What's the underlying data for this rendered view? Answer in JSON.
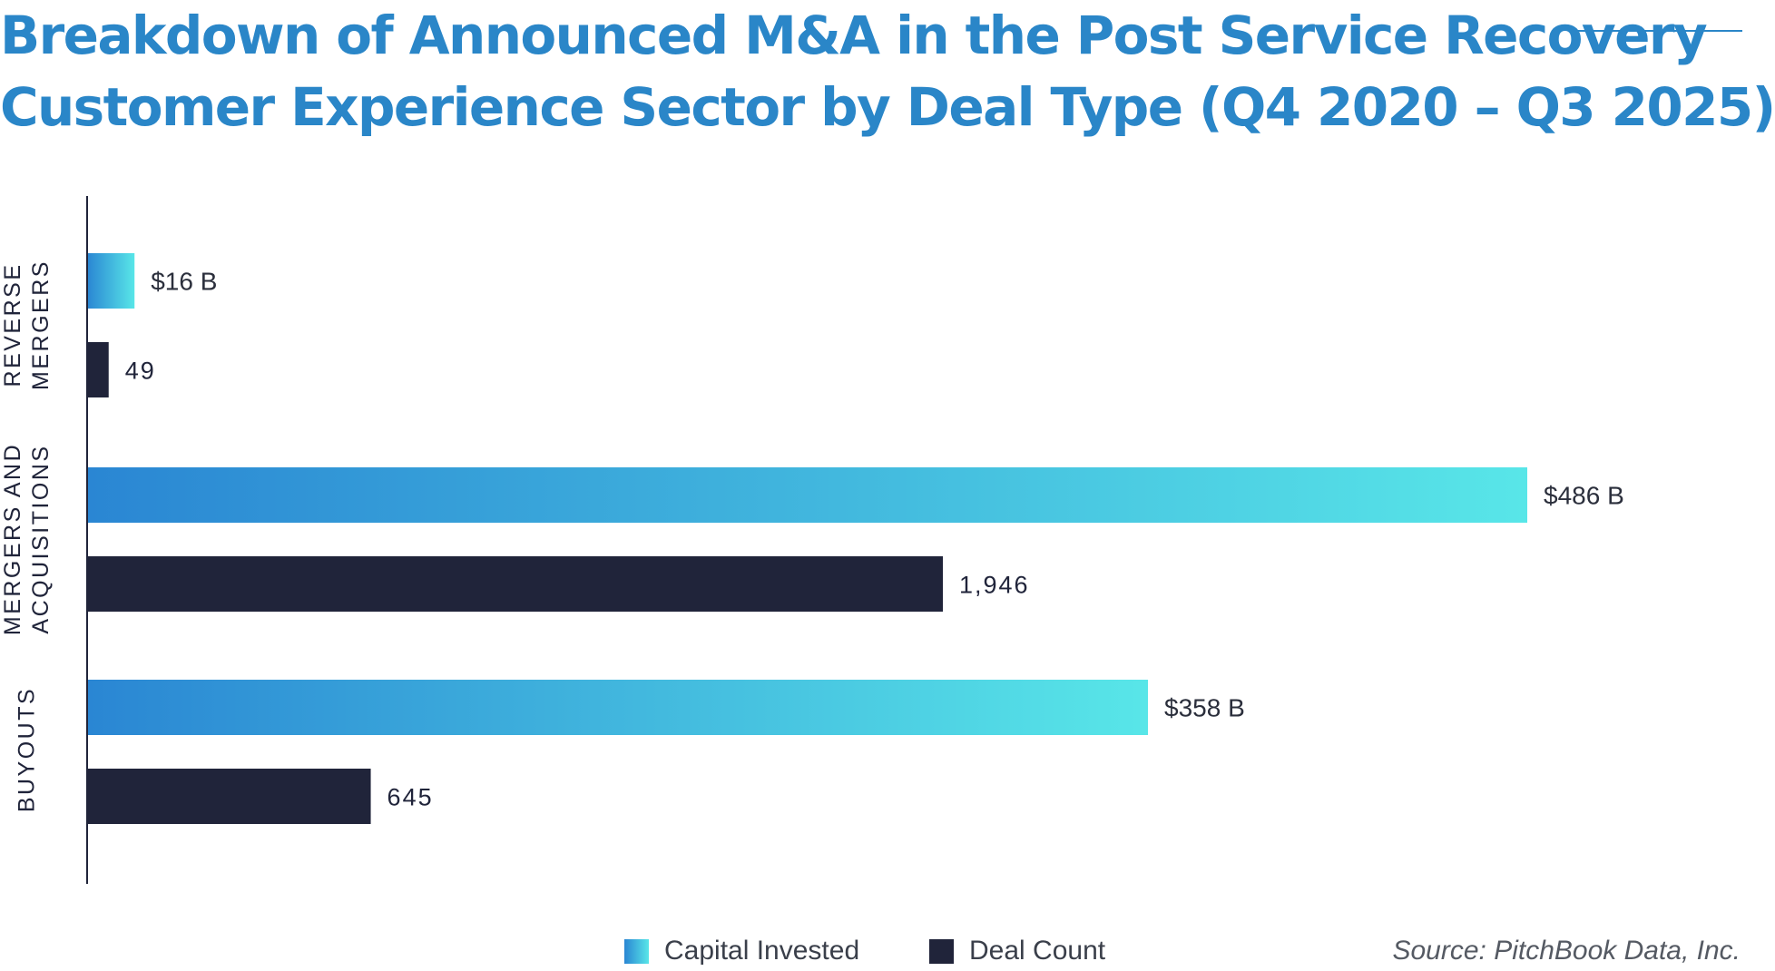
{
  "chart_data": {
    "type": "bar",
    "orientation": "horizontal",
    "title_lines": [
      "Breakdown of Announced M&A in the Post Service Recovery",
      "Customer Experience Sector by Deal Type (Q4 2020 – Q3 2025)"
    ],
    "categories": [
      {
        "label_lines": [
          "REVERSE",
          "MERGERS"
        ]
      },
      {
        "label_lines": [
          "MERGERS AND",
          "ACQUISITIONS"
        ]
      },
      {
        "label_lines": [
          "BUYOUTS"
        ]
      }
    ],
    "series": [
      {
        "name": "Capital Invested",
        "unit": "$B",
        "values": [
          16,
          486,
          358
        ],
        "labels": [
          "$16 B",
          "$486 B",
          "$358 B"
        ],
        "color_start": "#2a86d3",
        "color_end": "#58e6e8"
      },
      {
        "name": "Deal Count",
        "values": [
          49,
          1946,
          645
        ],
        "labels": [
          "49",
          "1,946",
          "645"
        ],
        "color": "#20243a"
      }
    ],
    "scale_note": "Capital Invested and Deal Count use independent scales",
    "axis": {
      "color": "#20243a"
    },
    "legend": {
      "placement": "bottom-center"
    },
    "grid": false
  },
  "source": "Source: PitchBook Data, Inc.",
  "colors": {
    "title": "#2a86c8",
    "text": "#20243a",
    "legend_text": "#3a3f4a"
  }
}
